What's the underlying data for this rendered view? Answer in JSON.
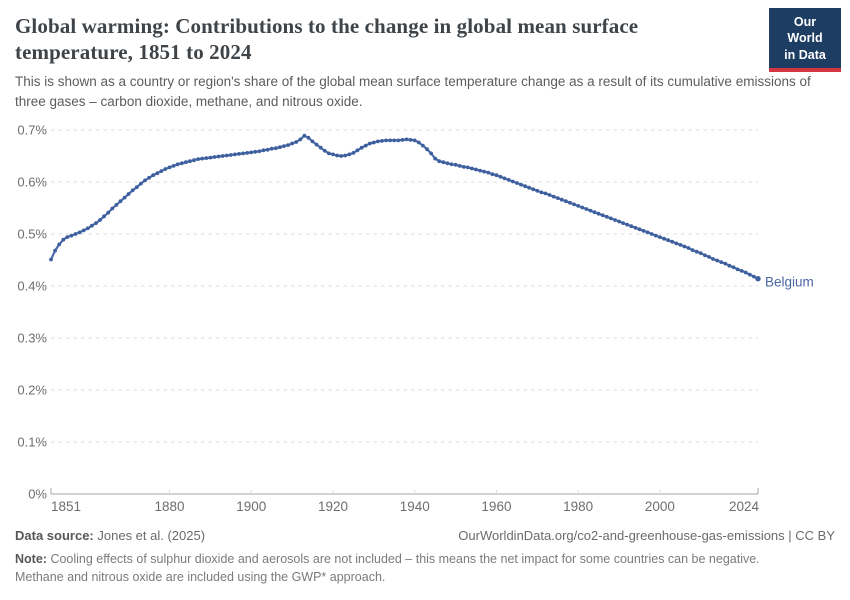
{
  "header": {
    "title": "Global warming: Contributions to the change in global mean surface temperature, 1851 to 2024",
    "subtitle": "This is shown as a country or region's share of the global mean surface temperature change as a result of its cumulative emissions of three gases – carbon dioxide, methane, and nitrous oxide.",
    "logo_line1": "Our World",
    "logo_line2": "in Data"
  },
  "colors": {
    "series_line": "#4d6cab",
    "series_dot": "#3e5f9e",
    "entity_label": "#4b66a2",
    "gridline": "#dedede",
    "axis_line": "#a6a6a6",
    "tick_label": "#6e6e6e",
    "logo_bg": "#1d3d63",
    "logo_red": "#d5353f"
  },
  "chart_data": {
    "type": "line",
    "title": "Global warming: Contributions to the change in global mean surface temperature, 1851 to 2024",
    "entity": "Belgium",
    "unit": "%",
    "xlabel": "",
    "ylabel": "",
    "xlim": [
      1851,
      2024
    ],
    "ylim_percent": [
      0,
      0.7
    ],
    "grid": "horizontal-dashed",
    "legend_position": "line-end-label",
    "x_ticks": [
      1851,
      1880,
      1900,
      1920,
      1940,
      1960,
      1980,
      2000,
      2024
    ],
    "y_tick_values": [
      0,
      0.1,
      0.2,
      0.3,
      0.4,
      0.5,
      0.6,
      0.7
    ],
    "y_tick_labels": [
      "0%",
      "0.1%",
      "0.2%",
      "0.3%",
      "0.4%",
      "0.5%",
      "0.6%",
      "0.7%"
    ],
    "years": [
      1851,
      1852,
      1853,
      1854,
      1855,
      1856,
      1857,
      1858,
      1859,
      1860,
      1861,
      1862,
      1863,
      1864,
      1865,
      1866,
      1867,
      1868,
      1869,
      1870,
      1871,
      1872,
      1873,
      1874,
      1875,
      1876,
      1877,
      1878,
      1879,
      1880,
      1881,
      1882,
      1883,
      1884,
      1885,
      1886,
      1887,
      1888,
      1889,
      1890,
      1891,
      1892,
      1893,
      1894,
      1895,
      1896,
      1897,
      1898,
      1899,
      1900,
      1901,
      1902,
      1903,
      1904,
      1905,
      1906,
      1907,
      1908,
      1909,
      1910,
      1911,
      1912,
      1913,
      1914,
      1915,
      1916,
      1917,
      1918,
      1919,
      1920,
      1921,
      1922,
      1923,
      1924,
      1925,
      1926,
      1927,
      1928,
      1929,
      1930,
      1931,
      1932,
      1933,
      1934,
      1935,
      1936,
      1937,
      1938,
      1939,
      1940,
      1941,
      1942,
      1943,
      1944,
      1945,
      1946,
      1947,
      1948,
      1949,
      1950,
      1951,
      1952,
      1953,
      1954,
      1955,
      1956,
      1957,
      1958,
      1959,
      1960,
      1961,
      1962,
      1963,
      1964,
      1965,
      1966,
      1967,
      1968,
      1969,
      1970,
      1971,
      1972,
      1973,
      1974,
      1975,
      1976,
      1977,
      1978,
      1979,
      1980,
      1981,
      1982,
      1983,
      1984,
      1985,
      1986,
      1987,
      1988,
      1989,
      1990,
      1991,
      1992,
      1993,
      1994,
      1995,
      1996,
      1997,
      1998,
      1999,
      2000,
      2001,
      2002,
      2003,
      2004,
      2005,
      2006,
      2007,
      2008,
      2009,
      2010,
      2011,
      2012,
      2013,
      2014,
      2015,
      2016,
      2017,
      2018,
      2019,
      2020,
      2021,
      2022,
      2023,
      2024
    ],
    "values_percent": [
      0.451,
      0.468,
      0.48,
      0.489,
      0.494,
      0.497,
      0.5,
      0.503,
      0.507,
      0.511,
      0.516,
      0.521,
      0.527,
      0.534,
      0.541,
      0.549,
      0.556,
      0.563,
      0.57,
      0.577,
      0.584,
      0.59,
      0.597,
      0.603,
      0.608,
      0.613,
      0.617,
      0.621,
      0.625,
      0.628,
      0.631,
      0.634,
      0.636,
      0.638,
      0.64,
      0.642,
      0.644,
      0.645,
      0.646,
      0.647,
      0.648,
      0.649,
      0.65,
      0.651,
      0.652,
      0.653,
      0.654,
      0.655,
      0.656,
      0.657,
      0.658,
      0.659,
      0.661,
      0.662,
      0.664,
      0.665,
      0.667,
      0.669,
      0.671,
      0.674,
      0.677,
      0.682,
      0.689,
      0.685,
      0.678,
      0.672,
      0.666,
      0.66,
      0.655,
      0.653,
      0.651,
      0.65,
      0.651,
      0.653,
      0.656,
      0.661,
      0.666,
      0.67,
      0.674,
      0.676,
      0.678,
      0.679,
      0.68,
      0.68,
      0.68,
      0.68,
      0.681,
      0.682,
      0.681,
      0.68,
      0.676,
      0.67,
      0.663,
      0.655,
      0.645,
      0.64,
      0.638,
      0.636,
      0.634,
      0.633,
      0.631,
      0.629,
      0.628,
      0.626,
      0.624,
      0.622,
      0.62,
      0.618,
      0.615,
      0.613,
      0.61,
      0.607,
      0.604,
      0.601,
      0.598,
      0.595,
      0.592,
      0.589,
      0.586,
      0.583,
      0.58,
      0.578,
      0.575,
      0.572,
      0.569,
      0.566,
      0.563,
      0.56,
      0.557,
      0.554,
      0.551,
      0.548,
      0.545,
      0.542,
      0.539,
      0.536,
      0.533,
      0.53,
      0.527,
      0.524,
      0.521,
      0.518,
      0.515,
      0.512,
      0.509,
      0.506,
      0.503,
      0.5,
      0.497,
      0.494,
      0.491,
      0.488,
      0.485,
      0.482,
      0.479,
      0.476,
      0.473,
      0.469,
      0.466,
      0.463,
      0.459,
      0.456,
      0.452,
      0.449,
      0.446,
      0.443,
      0.439,
      0.436,
      0.432,
      0.429,
      0.426,
      0.422,
      0.418,
      0.414
    ]
  },
  "footer": {
    "data_source_label": "Data source:",
    "data_source_value": "Jones et al. (2025)",
    "attribution": "OurWorldinData.org/co2-and-greenhouse-gas-emissions | CC BY",
    "note_label": "Note:",
    "note_line1": "Cooling effects of sulphur dioxide and aerosols are not included – this means the net impact for some countries can be negative.",
    "note_line2": "Methane and nitrous oxide are included using the GWP* approach."
  }
}
